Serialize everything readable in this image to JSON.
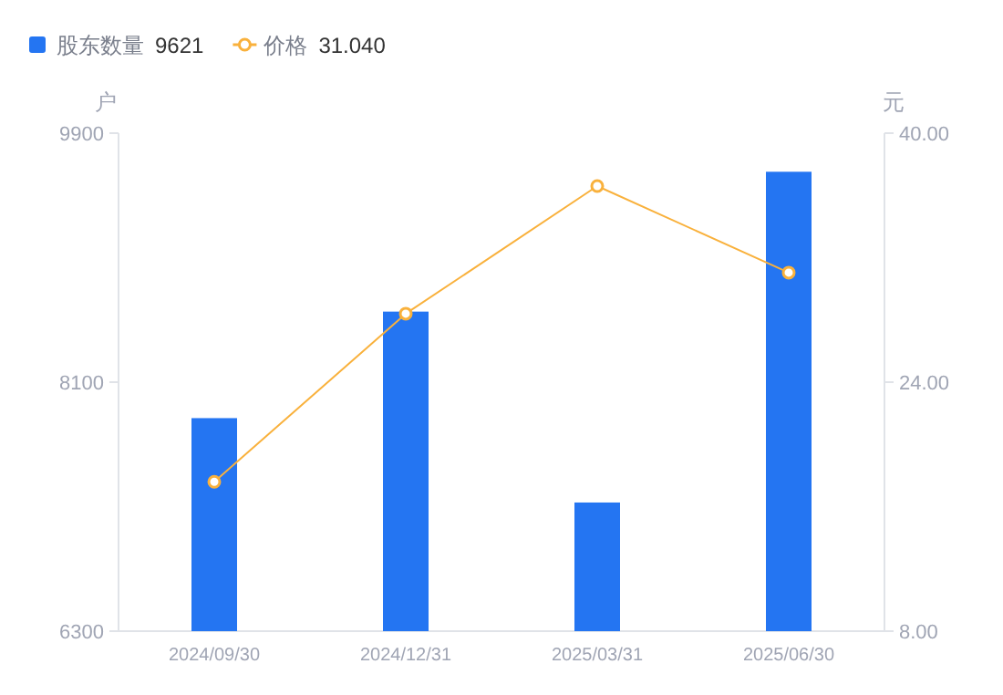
{
  "chart_data": {
    "type": "bar",
    "categories": [
      "2024/09/30",
      "2024/12/31",
      "2025/03/31",
      "2025/06/30"
    ],
    "ylabel": "户",
    "y2label": "元",
    "ylim": [
      6300,
      9900
    ],
    "yticks": [
      6300,
      8100,
      9900
    ],
    "y2lim": [
      8,
      40
    ],
    "y2ticks": [
      {
        "value": 8,
        "label": "8.00"
      },
      {
        "value": 24,
        "label": "24.00"
      },
      {
        "value": 40,
        "label": "40.00"
      }
    ],
    "series": [
      {
        "name": "股东数量",
        "color": "#2475f2",
        "values": [
          7840,
          8610,
          7230,
          9621
        ]
      },
      {
        "name": "价格",
        "type": "line",
        "axis": "y2",
        "color": "#f9b13c",
        "marker": "circle",
        "values": [
          17.6,
          28.4,
          36.6,
          31.04
        ]
      }
    ],
    "annotations": [
      "9621",
      "31.040"
    ],
    "legend": "top left",
    "grid": false
  }
}
